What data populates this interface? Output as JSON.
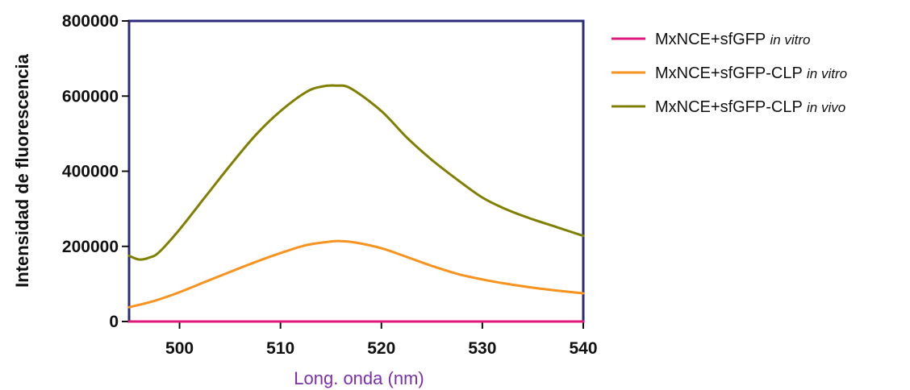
{
  "chart_data": {
    "type": "line",
    "title": "",
    "xlabel": "Long. onda (nm)",
    "ylabel": "Intensidad de fluorescencia",
    "xlim": [
      495,
      540
    ],
    "ylim": [
      0,
      800000
    ],
    "x_ticks": [
      500,
      510,
      520,
      530,
      540
    ],
    "x_tick_labels": [
      "500",
      "510",
      "520",
      "530",
      "540"
    ],
    "y_ticks": [
      0,
      200000,
      400000,
      600000,
      800000
    ],
    "y_tick_labels": [
      "0",
      "200000",
      "400000",
      "600000",
      "800000"
    ],
    "grid": false,
    "legend_position": "right",
    "series": [
      {
        "name": "MxNCE+sfGFP",
        "name_suffix": "in vitro",
        "color": "#e0197d",
        "x": [
          495,
          500,
          505,
          510,
          515,
          520,
          525,
          530,
          535,
          540
        ],
        "y": [
          0,
          0,
          0,
          0,
          0,
          0,
          0,
          0,
          0,
          0
        ]
      },
      {
        "name": "MxNCE+sfGFP-CLP",
        "name_suffix": "in vitro",
        "color": "#f7931e",
        "x": [
          495,
          497.5,
          500,
          502.5,
          505,
          507.5,
          510,
          512.5,
          515,
          516,
          517.5,
          520,
          522.5,
          525,
          527.5,
          530,
          532.5,
          535,
          537.5,
          540
        ],
        "y": [
          38000,
          55000,
          78000,
          105000,
          132000,
          158000,
          182000,
          203000,
          213000,
          214000,
          210000,
          195000,
          172000,
          148000,
          127000,
          112000,
          100000,
          90000,
          82000,
          75000
        ]
      },
      {
        "name": "MxNCE+sfGFP-CLP",
        "name_suffix": "in vivo",
        "color": "#808000",
        "x": [
          495,
          496,
          497,
          498,
          500,
          502.5,
          505,
          507.5,
          510,
          512.5,
          514,
          515.5,
          517,
          520,
          522.5,
          525,
          527.5,
          530,
          532.5,
          535,
          537.5,
          540
        ],
        "y": [
          175000,
          165000,
          170000,
          185000,
          245000,
          330000,
          415000,
          495000,
          560000,
          610000,
          625000,
          628000,
          620000,
          560000,
          490000,
          430000,
          378000,
          330000,
          297000,
          272000,
          250000,
          228000
        ]
      }
    ]
  },
  "colors": {
    "axis_frame": "#2b2b7a",
    "xlabel_color": "#7b2fa8"
  }
}
